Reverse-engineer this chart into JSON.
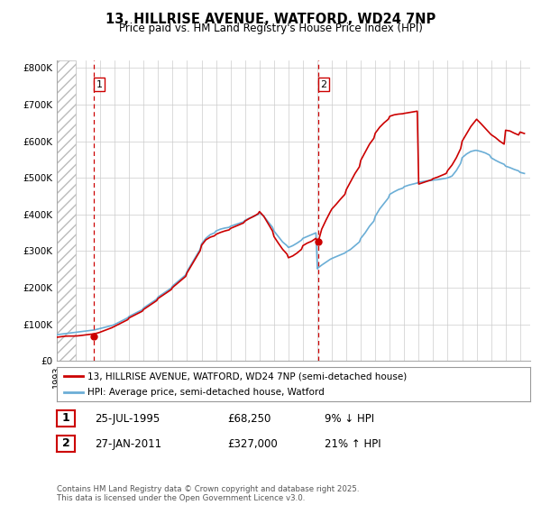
{
  "title_line1": "13, HILLRISE AVENUE, WATFORD, WD24 7NP",
  "title_line2": "Price paid vs. HM Land Registry's House Price Index (HPI)",
  "sale1_x": 1995.57,
  "sale1_y": 68250,
  "sale1_label": "1",
  "sale2_x": 2011.07,
  "sale2_y": 327000,
  "sale2_label": "2",
  "line1_color": "#cc0000",
  "line2_color": "#6baed6",
  "marker_color": "#cc0000",
  "vline_color": "#cc0000",
  "grid_color": "#cccccc",
  "bg_color": "#ffffff",
  "legend_entry1": "13, HILLRISE AVENUE, WATFORD, WD24 7NP (semi-detached house)",
  "legend_entry2": "HPI: Average price, semi-detached house, Watford",
  "table_row1": [
    "1",
    "25-JUL-1995",
    "£68,250",
    "9% ↓ HPI"
  ],
  "table_row2": [
    "2",
    "27-JAN-2011",
    "£327,000",
    "21% ↑ HPI"
  ],
  "footer": "Contains HM Land Registry data © Crown copyright and database right 2025.\nThis data is licensed under the Open Government Licence v3.0.",
  "ylim": [
    0,
    820000
  ],
  "yticks": [
    0,
    100000,
    200000,
    300000,
    400000,
    500000,
    600000,
    700000,
    800000
  ],
  "ytick_labels": [
    "£0",
    "£100K",
    "£200K",
    "£300K",
    "£400K",
    "£500K",
    "£600K",
    "£700K",
    "£800K"
  ],
  "xlim": [
    1993.0,
    2025.7
  ],
  "hatch_end": 1994.3,
  "hpi_x": [
    1993.0,
    1993.1,
    1993.2,
    1993.3,
    1993.4,
    1993.5,
    1993.6,
    1993.7,
    1993.8,
    1993.9,
    1994.0,
    1994.1,
    1994.2,
    1994.3,
    1994.4,
    1994.5,
    1994.6,
    1994.7,
    1994.8,
    1994.9,
    1995.0,
    1995.1,
    1995.2,
    1995.3,
    1995.4,
    1995.5,
    1995.6,
    1995.7,
    1995.8,
    1995.9,
    1996.0,
    1996.2,
    1996.4,
    1996.6,
    1996.8,
    1997.0,
    1997.3,
    1997.6,
    1997.9,
    1998.0,
    1998.3,
    1998.6,
    1998.9,
    1999.0,
    1999.3,
    1999.6,
    1999.9,
    2000.0,
    2000.3,
    2000.6,
    2000.9,
    2001.0,
    2001.3,
    2001.6,
    2001.9,
    2002.0,
    2002.3,
    2002.6,
    2002.9,
    2003.0,
    2003.3,
    2003.6,
    2003.9,
    2004.0,
    2004.3,
    2004.6,
    2004.9,
    2005.0,
    2005.3,
    2005.6,
    2005.9,
    2006.0,
    2006.3,
    2006.6,
    2006.9,
    2007.0,
    2007.3,
    2007.6,
    2007.9,
    2008.0,
    2008.3,
    2008.6,
    2008.9,
    2009.0,
    2009.3,
    2009.6,
    2009.9,
    2010.0,
    2010.3,
    2010.6,
    2010.9,
    2011.0,
    2011.07,
    2011.3,
    2011.6,
    2011.9,
    2012.0,
    2012.3,
    2012.6,
    2012.9,
    2013.0,
    2013.3,
    2013.6,
    2013.9,
    2014.0,
    2014.3,
    2014.6,
    2014.9,
    2015.0,
    2015.3,
    2015.6,
    2015.9,
    2016.0,
    2016.3,
    2016.6,
    2016.9,
    2017.0,
    2017.3,
    2017.6,
    2017.9,
    2018.0,
    2018.3,
    2018.6,
    2018.9,
    2019.0,
    2019.3,
    2019.6,
    2019.9,
    2020.0,
    2020.3,
    2020.6,
    2020.9,
    2021.0,
    2021.3,
    2021.6,
    2021.9,
    2022.0,
    2022.3,
    2022.6,
    2022.9,
    2023.0,
    2023.3,
    2023.6,
    2023.9,
    2024.0,
    2024.3,
    2024.6,
    2024.9,
    2025.0,
    2025.3
  ],
  "hpi_y": [
    72000,
    72500,
    73000,
    73500,
    74000,
    74500,
    75000,
    75500,
    76000,
    76500,
    77000,
    77500,
    78000,
    78500,
    79000,
    79500,
    80000,
    80500,
    81000,
    81500,
    82000,
    82500,
    83000,
    83500,
    84000,
    84500,
    85000,
    86000,
    87000,
    88000,
    89000,
    91000,
    93000,
    95000,
    97000,
    100000,
    106000,
    112000,
    118000,
    122000,
    128000,
    134000,
    140000,
    145000,
    153000,
    161000,
    169000,
    175000,
    183000,
    191000,
    199000,
    205000,
    215000,
    225000,
    235000,
    245000,
    265000,
    285000,
    305000,
    320000,
    335000,
    345000,
    350000,
    355000,
    360000,
    363000,
    365000,
    368000,
    372000,
    376000,
    380000,
    384000,
    390000,
    395000,
    400000,
    405000,
    395000,
    380000,
    365000,
    355000,
    340000,
    325000,
    315000,
    310000,
    315000,
    322000,
    330000,
    335000,
    340000,
    345000,
    350000,
    252000,
    255000,
    262000,
    270000,
    278000,
    280000,
    285000,
    290000,
    295000,
    298000,
    305000,
    315000,
    325000,
    335000,
    350000,
    368000,
    382000,
    395000,
    415000,
    430000,
    445000,
    455000,
    462000,
    468000,
    472000,
    476000,
    480000,
    483000,
    486000,
    488000,
    490000,
    492000,
    493000,
    494000,
    495000,
    497000,
    499000,
    500000,
    505000,
    520000,
    540000,
    555000,
    565000,
    572000,
    575000,
    575000,
    572000,
    568000,
    562000,
    555000,
    548000,
    542000,
    537000,
    532000,
    528000,
    523000,
    519000,
    515000,
    512000
  ],
  "price_x": [
    1993.0,
    1993.1,
    1993.2,
    1993.3,
    1993.4,
    1993.5,
    1993.6,
    1993.7,
    1993.8,
    1993.9,
    1994.0,
    1994.1,
    1994.2,
    1994.3,
    1994.4,
    1994.5,
    1994.6,
    1994.7,
    1994.8,
    1994.9,
    1995.0,
    1995.1,
    1995.2,
    1995.3,
    1995.4,
    1995.5,
    1995.57,
    1995.6,
    1995.7,
    1995.8,
    1995.9,
    1996.0,
    1996.2,
    1996.4,
    1996.6,
    1996.8,
    1997.0,
    1997.3,
    1997.6,
    1997.9,
    1998.0,
    1998.3,
    1998.6,
    1998.9,
    1999.0,
    1999.3,
    1999.6,
    1999.9,
    2000.0,
    2000.3,
    2000.6,
    2000.9,
    2001.0,
    2001.3,
    2001.6,
    2001.9,
    2002.0,
    2002.3,
    2002.6,
    2002.9,
    2003.0,
    2003.3,
    2003.6,
    2003.9,
    2004.0,
    2004.3,
    2004.6,
    2004.9,
    2005.0,
    2005.3,
    2005.6,
    2005.9,
    2006.0,
    2006.3,
    2006.6,
    2006.9,
    2007.0,
    2007.3,
    2007.6,
    2007.9,
    2008.0,
    2008.3,
    2008.6,
    2008.9,
    2009.0,
    2009.3,
    2009.6,
    2009.9,
    2010.0,
    2010.3,
    2010.6,
    2010.9,
    2011.0,
    2011.07,
    2011.3,
    2011.6,
    2011.9,
    2012.0,
    2012.3,
    2012.6,
    2012.9,
    2013.0,
    2013.3,
    2013.6,
    2013.9,
    2014.0,
    2014.3,
    2014.6,
    2014.9,
    2015.0,
    2015.3,
    2015.6,
    2015.9,
    2016.0,
    2016.3,
    2016.6,
    2016.9,
    2017.0,
    2017.3,
    2017.6,
    2017.9,
    2018.0,
    2018.3,
    2018.6,
    2018.9,
    2019.0,
    2019.3,
    2019.6,
    2019.9,
    2020.0,
    2020.3,
    2020.6,
    2020.9,
    2021.0,
    2021.3,
    2021.6,
    2021.9,
    2022.0,
    2022.3,
    2022.6,
    2022.9,
    2023.0,
    2023.3,
    2023.6,
    2023.9,
    2024.0,
    2024.3,
    2024.6,
    2024.9,
    2025.0,
    2025.3
  ],
  "price_y": [
    65000,
    65500,
    66000,
    66500,
    67000,
    67500,
    68000,
    68200,
    68300,
    68250,
    68250,
    68300,
    68400,
    68500,
    68700,
    69000,
    69500,
    70000,
    70500,
    71000,
    71500,
    72000,
    72500,
    73000,
    73500,
    74000,
    68250,
    74500,
    75500,
    76500,
    77500,
    79000,
    82000,
    85000,
    88000,
    91000,
    95000,
    101000,
    107000,
    113000,
    118000,
    124000,
    130000,
    136000,
    141000,
    149000,
    157000,
    165000,
    171000,
    179000,
    187000,
    195000,
    201000,
    211000,
    221000,
    231000,
    241000,
    261000,
    281000,
    301000,
    316000,
    331000,
    338000,
    342000,
    346000,
    351000,
    355000,
    358000,
    362000,
    367000,
    372000,
    377000,
    382000,
    389000,
    395000,
    402000,
    408000,
    395000,
    375000,
    355000,
    340000,
    322000,
    305000,
    292000,
    282000,
    287000,
    295000,
    305000,
    315000,
    322000,
    327000,
    335000,
    327000,
    327000,
    360000,
    385000,
    408000,
    415000,
    428000,
    442000,
    455000,
    468000,
    490000,
    512000,
    530000,
    548000,
    570000,
    592000,
    608000,
    622000,
    638000,
    650000,
    660000,
    668000,
    672000,
    674000,
    675000,
    676000,
    678000,
    680000,
    682000,
    483000,
    487000,
    491000,
    495000,
    498000,
    502000,
    507000,
    512000,
    520000,
    535000,
    555000,
    580000,
    600000,
    620000,
    640000,
    655000,
    660000,
    648000,
    635000,
    622000,
    618000,
    610000,
    600000,
    592000,
    630000,
    628000,
    622000,
    617000,
    625000,
    621000
  ]
}
